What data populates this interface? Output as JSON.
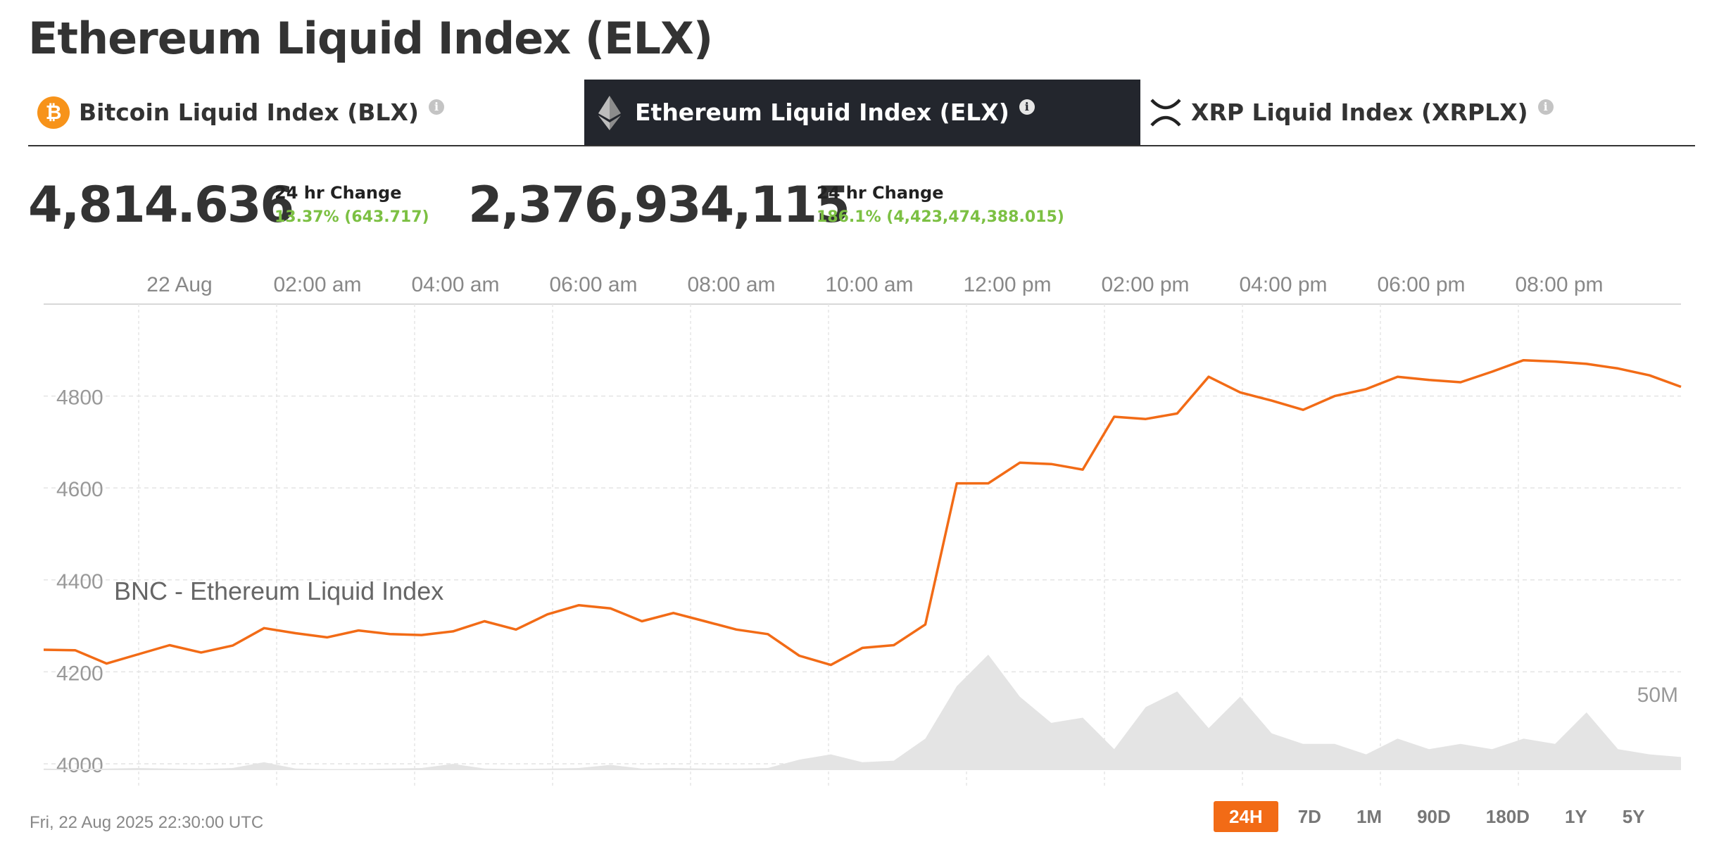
{
  "title": "Ethereum Liquid Index (ELX)",
  "tabs": [
    {
      "label": "Bitcoin Liquid Index (BLX)",
      "icon": "bitcoin-icon",
      "active": false
    },
    {
      "label": "Ethereum Liquid Index (ELX)",
      "icon": "ethereum-icon",
      "active": true
    },
    {
      "label": "XRP Liquid Index (XRPLX)",
      "icon": "xrp-icon",
      "active": false
    }
  ],
  "info_glyph": "i",
  "stats": {
    "price": {
      "value": "4,814.636",
      "change_label": "24 hr Change",
      "change": "13.37% (643.717)"
    },
    "volume": {
      "value": "2,376,934,115",
      "change_label": "24 hr Change",
      "change": "186.1% (4,423,474,388.015)"
    }
  },
  "colors": {
    "accent": "#f26b16",
    "positive": "#7cc043",
    "active_tab": "#23262d",
    "volume": "#e4e4e4"
  },
  "chart_data": {
    "type": "line",
    "series": [
      {
        "name": "BNC - Ethereum Liquid Index",
        "x": [
          "22 Aug 00:00",
          "00:30",
          "01:00",
          "01:30",
          "02:00",
          "02:30",
          "03:00",
          "03:30",
          "04:00",
          "04:30",
          "05:00",
          "05:30",
          "06:00",
          "06:30",
          "07:00",
          "07:30",
          "08:00",
          "08:30",
          "09:00",
          "09:30",
          "10:00",
          "10:30",
          "11:00",
          "11:30",
          "12:00",
          "12:30",
          "13:00",
          "13:30",
          "13:45",
          "14:00",
          "14:15",
          "14:30",
          "15:00",
          "15:30",
          "16:00",
          "16:15",
          "16:30",
          "17:00",
          "17:15",
          "17:30",
          "18:00",
          "18:15",
          "18:30",
          "19:00",
          "19:30",
          "19:45",
          "20:00",
          "20:30",
          "21:00",
          "21:15",
          "21:30",
          "22:00",
          "22:30"
        ],
        "values": [
          4248,
          4247,
          4218,
          4238,
          4258,
          4242,
          4257,
          4295,
          4284,
          4275,
          4290,
          4282,
          4280,
          4288,
          4310,
          4292,
          4325,
          4345,
          4338,
          4310,
          4328,
          4310,
          4292,
          4282,
          4235,
          4215,
          4252,
          4258,
          4303,
          4610,
          4610,
          4655,
          4652,
          4640,
          4755,
          4750,
          4762,
          4842,
          4808,
          4790,
          4770,
          4800,
          4815,
          4842,
          4835,
          4830,
          4853,
          4878,
          4875,
          4870,
          4860,
          4845,
          4820
        ]
      }
    ],
    "volume_series": {
      "name": "Volume",
      "values": [
        0.3,
        0.2,
        0.3,
        0.4,
        0.3,
        0.2,
        0.4,
        1.5,
        0.3,
        0.2,
        0.2,
        0.3,
        0.4,
        1.2,
        0.3,
        0.2,
        0.3,
        0.4,
        1.0,
        0.3,
        0.4,
        0.3,
        0.3,
        0.4,
        2.0,
        3.0,
        1.5,
        1.8,
        6.0,
        16.0,
        22.0,
        14.0,
        9.0,
        10.0,
        4.0,
        12.0,
        15.0,
        8.0,
        14.0,
        7.0,
        5.0,
        5.0,
        3.0,
        6.0,
        4.0,
        5.0,
        4.0,
        6.0,
        5.0,
        11.0,
        4.0,
        3.0,
        2.5
      ]
    },
    "x_ticks": [
      "22 Aug",
      "02:00 am",
      "04:00 am",
      "06:00 am",
      "08:00 am",
      "10:00 am",
      "12:00 pm",
      "02:00 pm",
      "04:00 pm",
      "06:00 pm",
      "08:00 pm"
    ],
    "y_ticks": [
      4000,
      4200,
      4400,
      4600,
      4800
    ],
    "ylim": [
      3980,
      5000
    ],
    "volume_label": "50M",
    "xlabel": "",
    "ylabel": "",
    "grid": true,
    "legend": "left"
  },
  "timestamp": "Fri, 22 Aug 2025 22:30:00 UTC",
  "ranges": [
    "24H",
    "7D",
    "1M",
    "90D",
    "180D",
    "1Y",
    "5Y"
  ],
  "active_range": "24H"
}
